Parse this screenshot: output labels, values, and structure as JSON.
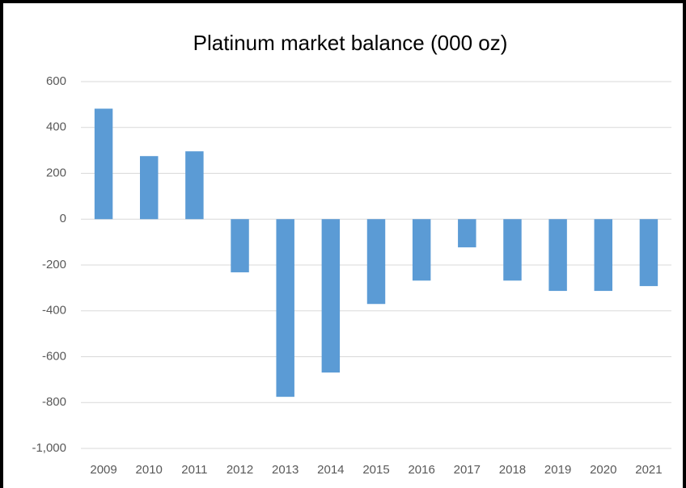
{
  "chart_data": {
    "type": "bar",
    "title": "Platinum market balance (000 oz)",
    "categories": [
      "2009",
      "2010",
      "2011",
      "2012",
      "2013",
      "2014",
      "2015",
      "2016",
      "2017",
      "2018",
      "2019",
      "2020",
      "2021"
    ],
    "values": [
      482,
      275,
      296,
      -232,
      -775,
      -669,
      -370,
      -268,
      -123,
      -268,
      -313,
      -313,
      -292
    ],
    "color": "#5b9bd5",
    "ylim": [
      -1000,
      600
    ],
    "yticks": [
      {
        "value": -1000,
        "label": "-1,000"
      },
      -800,
      -600,
      -400,
      -200,
      0,
      200,
      400,
      600
    ],
    "grid": true
  }
}
